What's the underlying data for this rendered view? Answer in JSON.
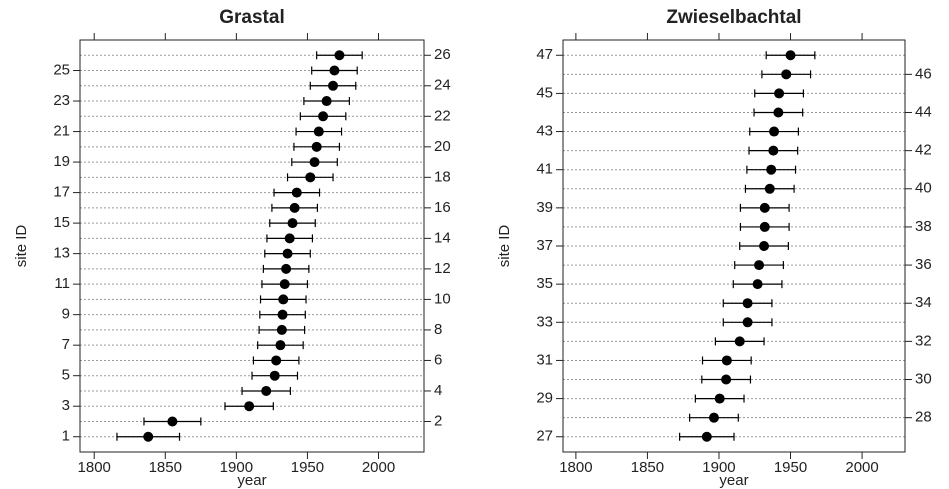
{
  "chart_data": [
    {
      "type": "errorbar",
      "title": "Grastal",
      "xlabel": "year",
      "ylabel": "site ID",
      "y": [
        1,
        2,
        3,
        4,
        5,
        6,
        7,
        8,
        9,
        10,
        11,
        12,
        13,
        14,
        15,
        16,
        17,
        18,
        19,
        20,
        21,
        22,
        23,
        24,
        25,
        26
      ],
      "values": [
        1838,
        1855,
        1909,
        1921,
        1927,
        1928,
        1931,
        1932,
        1932.5,
        1933,
        1934,
        1935,
        1936,
        1937.5,
        1939.5,
        1941,
        1942.5,
        1952,
        1955,
        1956.5,
        1958,
        1961,
        1963.5,
        1968,
        1969,
        1972.5
      ],
      "errors": [
        22,
        20,
        17,
        17,
        16,
        16,
        16,
        16,
        16,
        16,
        16,
        16,
        16,
        16,
        16,
        16,
        16,
        16,
        16,
        16,
        16,
        16,
        16,
        16,
        16,
        16
      ],
      "color": "#000000",
      "xlim": [
        1790,
        2032
      ],
      "xticks": [
        1800,
        1850,
        1900,
        1950,
        2000
      ],
      "ylim": [
        0,
        27
      ],
      "yticks": [
        1,
        3,
        5,
        7,
        9,
        11,
        13,
        15,
        17,
        19,
        21,
        23,
        25
      ],
      "y2lim": [
        0,
        27
      ],
      "y2ticks": [
        2,
        4,
        6,
        8,
        10,
        12,
        14,
        16,
        18,
        20,
        22,
        24,
        26
      ],
      "grid": true
    },
    {
      "type": "errorbar",
      "title": "Zwieselbachtal",
      "xlabel": "year",
      "ylabel": "site ID",
      "y": [
        27,
        28,
        29,
        30,
        31,
        32,
        33,
        34,
        35,
        36,
        37,
        38,
        39,
        40,
        41,
        42,
        43,
        44,
        45,
        46,
        47
      ],
      "values": [
        1891.5,
        1896.5,
        1900.5,
        1905,
        1905.5,
        1914.5,
        1920,
        1920,
        1927,
        1928,
        1931.5,
        1932,
        1932,
        1935.5,
        1936.5,
        1938,
        1938.5,
        1941.5,
        1942,
        1947,
        1950
      ],
      "errors": [
        19,
        17,
        17,
        17,
        17,
        17,
        17,
        17,
        17,
        17,
        17,
        17,
        17,
        17,
        17,
        17,
        17,
        17,
        17,
        17,
        17
      ],
      "color": "#000000",
      "xlim": [
        1791,
        2030
      ],
      "xticks": [
        1800,
        1850,
        1900,
        1950,
        2000
      ],
      "ylim": [
        26.2,
        47.8
      ],
      "yticks": [
        27,
        29,
        31,
        33,
        35,
        37,
        39,
        41,
        43,
        45,
        47
      ],
      "y2lim": [
        26.2,
        47.8
      ],
      "y2ticks": [
        28,
        30,
        32,
        34,
        36,
        38,
        40,
        42,
        44,
        46
      ],
      "grid": true
    }
  ]
}
